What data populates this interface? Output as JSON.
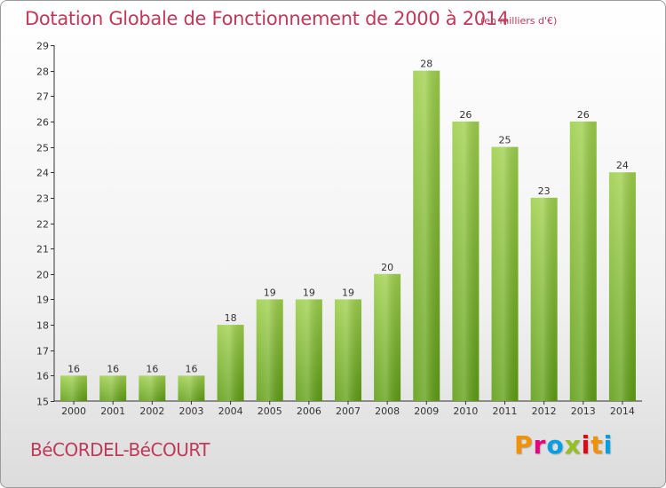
{
  "chart_data": {
    "type": "bar",
    "title": "Dotation Globale de Fonctionnement de 2000 à 2014",
    "subtitle": "(en milliers d'€)",
    "categories": [
      "2000",
      "2001",
      "2002",
      "2003",
      "2004",
      "2005",
      "2006",
      "2007",
      "2008",
      "2009",
      "2010",
      "2011",
      "2012",
      "2013",
      "2014"
    ],
    "values": [
      16,
      16,
      16,
      16,
      18,
      19,
      19,
      19,
      20,
      28,
      26,
      25,
      23,
      26,
      24
    ],
    "ylim": [
      15,
      29
    ],
    "yticks": [
      15,
      16,
      17,
      18,
      19,
      20,
      21,
      22,
      23,
      24,
      25,
      26,
      27,
      28,
      29
    ],
    "grid": false,
    "bar_color": "#7fbf2e"
  },
  "footer": {
    "place_name": "BéCORDEL-BéCOURT",
    "logo_text": "Proxiti",
    "logo_colors": [
      "#f39200",
      "#e6007e",
      "#009fe3",
      "#95c11f",
      "#e30613",
      "#f39200",
      "#009fe3"
    ]
  },
  "colors": {
    "title": "#c0395b",
    "axis": "#333333"
  }
}
